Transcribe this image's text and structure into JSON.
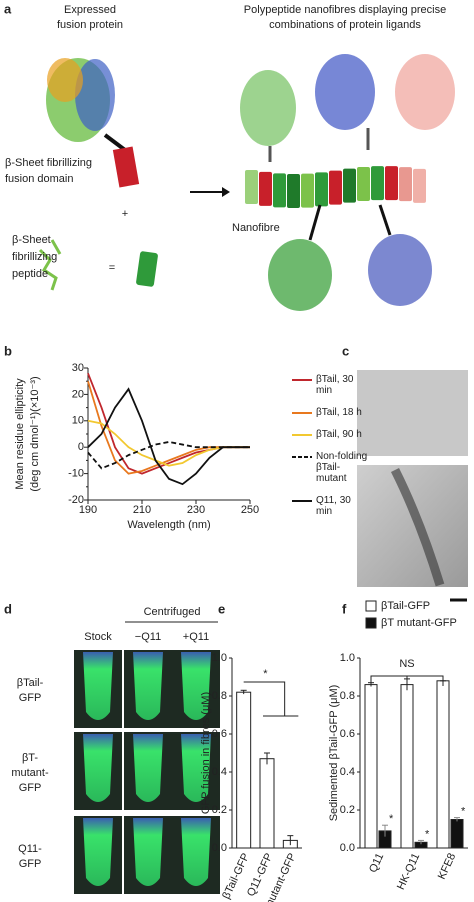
{
  "panel_labels": [
    "a",
    "b",
    "c",
    "d",
    "e",
    "f"
  ],
  "panel_a": {
    "left_title": [
      "Expressed",
      "fusion protein"
    ],
    "right_title": [
      "Polypeptide nanofibres displaying precise",
      "combinations of protein ligands"
    ],
    "domain_label": [
      "β-Sheet fibrillizing",
      "fusion domain"
    ],
    "plus": "+",
    "peptide_label": [
      "β-Sheet",
      "fibrillizing",
      "peptide"
    ],
    "equals": "=",
    "nanofibre_label": "Nanofibre"
  },
  "panel_d": {
    "header": "Centrifuged",
    "columns": [
      "Stock",
      "−Q11",
      "+Q11"
    ],
    "rows": [
      [
        "βTail-",
        "GFP"
      ],
      [
        "βT-",
        "mutant-",
        "GFP"
      ],
      [
        "Q11-",
        "GFP"
      ]
    ]
  },
  "chart_data": [
    {
      "type": "line",
      "xlabel": "Wavelength (nm)",
      "ylabel": [
        "Mean residue ellipticity",
        "(deg cm dmol⁻¹)(×10⁻³)"
      ],
      "x": [
        190,
        195,
        200,
        205,
        210,
        215,
        220,
        225,
        230,
        235,
        240,
        245,
        250
      ],
      "xlim": [
        190,
        250
      ],
      "xticks": [
        190,
        210,
        230,
        250
      ],
      "ylim": [
        -20,
        30
      ],
      "yticks": [
        -20,
        -15,
        -10,
        -5,
        0,
        5,
        10,
        15,
        20,
        25,
        30
      ],
      "series": [
        {
          "name": "βTail, 30 min",
          "color": "#c0272d",
          "values": [
            28,
            15,
            0,
            -8,
            -10,
            -8,
            -6,
            -4,
            -2,
            -1,
            0,
            0,
            0
          ]
        },
        {
          "name": "βTail, 18 h",
          "color": "#e8781e",
          "values": [
            25,
            8,
            -5,
            -10,
            -9,
            -7,
            -5,
            -3,
            -1,
            0,
            0,
            0,
            0
          ]
        },
        {
          "name": "βTail, 90 h",
          "color": "#f2c830",
          "values": [
            10,
            9,
            5,
            0,
            -3,
            -5,
            -7,
            -6,
            -3,
            -1,
            0,
            0,
            0
          ]
        },
        {
          "name": "Non-folding βTail-mutant",
          "color": "#111111",
          "dash": true,
          "values": [
            -2,
            -8,
            -6,
            -3,
            -1,
            1,
            2,
            1,
            0,
            0,
            0,
            0,
            0
          ]
        },
        {
          "name": "Q11, 30 min",
          "color": "#111111",
          "values": [
            0,
            5,
            15,
            22,
            10,
            -5,
            -12,
            -14,
            -10,
            -4,
            0,
            0,
            0
          ]
        }
      ]
    },
    {
      "type": "bar",
      "ylabel": "GFP fusion in fibres (μM)",
      "categories": [
        "βTail-GFP",
        "Q11-GFP",
        "βT-mutant-GFP"
      ],
      "values": [
        0.82,
        0.47,
        0.04
      ],
      "errors": [
        0.01,
        0.03,
        0.025
      ],
      "color": "#ffffff",
      "ylim": [
        0,
        1
      ],
      "yticks": [
        {
          "value": 0,
          "label": "0.0"
        },
        0.2,
        0.4,
        0.6,
        0.8,
        {
          "value": 1,
          "label": "1.0"
        }
      ],
      "annotations": [
        "*"
      ]
    },
    {
      "type": "grouped_bar",
      "ylabel": "Sedimented βTail-GFP (μM)",
      "categories": [
        "Q11",
        "HK-Q11",
        "KFE8"
      ],
      "series": [
        {
          "name": "βTail-GFP",
          "color": "#ffffff",
          "values": [
            0.86,
            0.86,
            0.88
          ],
          "errors": [
            0.01,
            0.03,
            0
          ]
        },
        {
          "name": "βT mutant-GFP",
          "color": "#111111",
          "values": [
            0.09,
            0.03,
            0.15
          ],
          "errors": [
            0.03,
            0.01,
            0.01
          ]
        }
      ],
      "ylim": [
        0,
        1
      ],
      "yticks": [
        {
          "value": 0,
          "label": "0.0"
        },
        0.2,
        0.4,
        0.6,
        0.8,
        {
          "value": 1,
          "label": "1.0"
        }
      ],
      "annotations": [
        "NS",
        "*",
        "*",
        "*"
      ]
    }
  ]
}
